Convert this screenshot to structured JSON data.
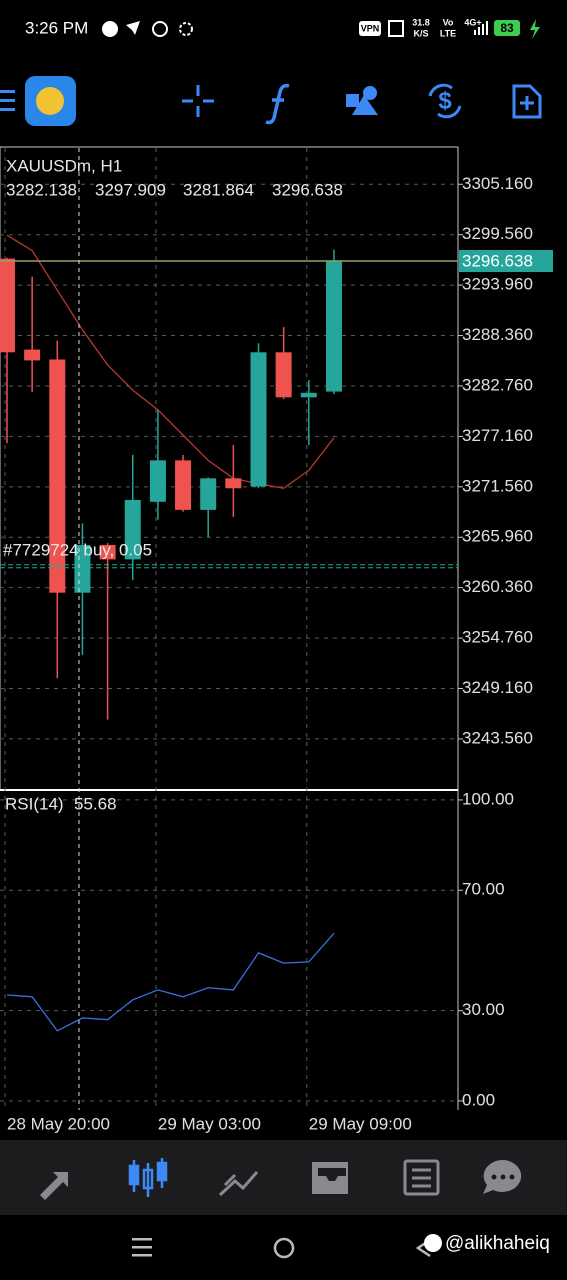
{
  "status_bar": {
    "time": "3:26 PM",
    "vpn": "VPN",
    "speed": "31.8",
    "speed_unit": "K/S",
    "volte_top": "Vo",
    "volte_bottom": "LTE",
    "network": "4G+",
    "battery": "83"
  },
  "chart_data": [
    {
      "type": "candlestick",
      "title": "XAUUSDm, H1",
      "categories": [
        "28 May 20:00",
        null,
        null,
        null,
        null,
        null,
        "29 May 03:00",
        null,
        null,
        null,
        null,
        null,
        "29 May 09:00",
        null
      ],
      "open": [
        3296.9,
        3286.8,
        3285.7,
        3259.8,
        3265.1,
        3263.5,
        3269.9,
        3274.5,
        3269.0,
        3272.5,
        3271.6,
        3286.5,
        3281.5,
        3282.138
      ],
      "high": [
        3297.0,
        3294.9,
        3287.8,
        3267.5,
        3265.3,
        3275.1,
        3280.1,
        3275.1,
        3272.6,
        3276.2,
        3287.5,
        3289.3,
        3283.4,
        3297.909
      ],
      "low": [
        3276.4,
        3282.1,
        3250.3,
        3252.9,
        3245.7,
        3261.2,
        3267.9,
        3268.8,
        3266.0,
        3268.2,
        3271.4,
        3281.3,
        3276.2,
        3281.864
      ],
      "close": [
        3286.5,
        3285.6,
        3259.8,
        3265.1,
        3263.5,
        3270.1,
        3274.5,
        3269.0,
        3272.5,
        3271.4,
        3286.5,
        3281.5,
        3282.0,
        3296.638
      ],
      "ma_values": [
        3299.5,
        3297.8,
        3293.4,
        3289.0,
        3285.1,
        3282.3,
        3280.1,
        3277.3,
        3274.5,
        3272.5,
        3271.9,
        3271.4,
        3273.4,
        3277.0
      ],
      "up_color": "#26a69a",
      "down_color": "#ef5350",
      "ma_color": "#b53a2e",
      "ylim": [
        3238.0,
        3309.3
      ],
      "yticks": [
        {
          "value": 3305.16,
          "label": "3305.160"
        },
        {
          "value": 3299.56,
          "label": "3299.560"
        },
        {
          "value": 3293.96,
          "label": "3293.960"
        },
        {
          "value": 3288.36,
          "label": "3288.360"
        },
        {
          "value": 3282.76,
          "label": "3282.760"
        },
        {
          "value": 3277.16,
          "label": "3277.160"
        },
        {
          "value": 3271.56,
          "label": "3271.560"
        },
        {
          "value": 3265.96,
          "label": "3265.960"
        },
        {
          "value": 3260.36,
          "label": "3260.360"
        },
        {
          "value": 3254.76,
          "label": "3254.760"
        },
        {
          "value": 3249.16,
          "label": "3249.160"
        },
        {
          "value": 3243.56,
          "label": "3243.560"
        }
      ],
      "grid": true,
      "order_line": {
        "label": "#7729724 buy, 0.05",
        "value": 3262.9
      }
    },
    {
      "type": "line",
      "title": "RSI(14)",
      "values": [
        35.2,
        34.6,
        23.3,
        27.6,
        27.0,
        33.6,
        36.9,
        34.6,
        37.6,
        36.9,
        49.2,
        45.8,
        46.2,
        55.68
      ],
      "color": "#3d6fe0",
      "ylim": [
        -3,
        103.3
      ],
      "yticks": [
        {
          "value": 100,
          "label": "100.00"
        },
        {
          "value": 70,
          "label": "70.00"
        },
        {
          "value": 30,
          "label": "30.00"
        },
        {
          "value": 0,
          "label": "0.00"
        }
      ],
      "grid": true
    }
  ],
  "watermark": "@alikhaheiq"
}
